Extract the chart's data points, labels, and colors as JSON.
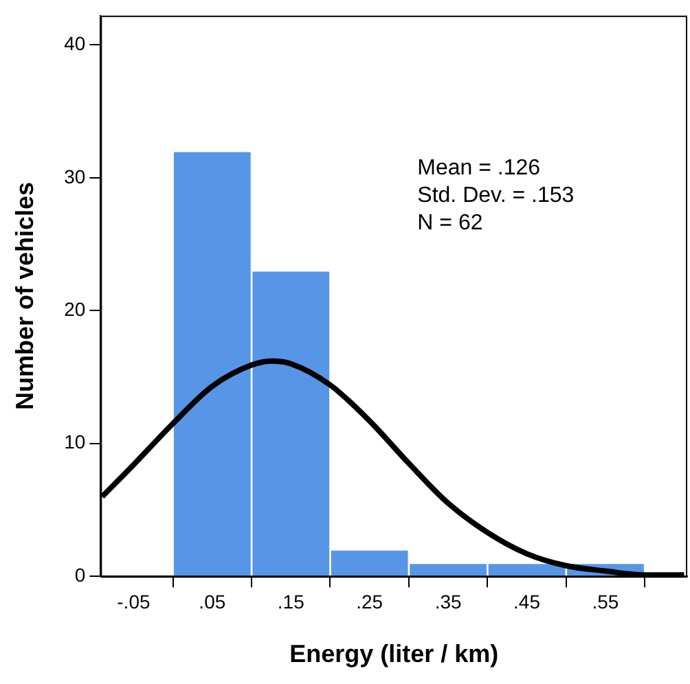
{
  "chart_data": {
    "type": "histogram",
    "xlabel": "Energy (liter / km)",
    "ylabel": "Number of vehicles",
    "series": [
      {
        "color": "#5796e6",
        "bins": [
          0,
          0.1,
          0.2,
          0.3,
          0.4,
          0.5,
          0.6
        ],
        "values": [
          32,
          23,
          2,
          1,
          1,
          1
        ]
      },
      {
        "type": "line",
        "color": "#000000",
        "x": [
          -0.09,
          -0.05,
          0,
          0.05,
          0.1,
          0.126,
          0.15,
          0.2,
          0.25,
          0.3,
          0.35,
          0.4,
          0.45,
          0.5,
          0.55,
          0.6,
          0.65
        ],
        "values": [
          6.0,
          8.4,
          11.5,
          14.3,
          15.9,
          16.2,
          16.0,
          14.4,
          11.7,
          8.5,
          5.5,
          3.3,
          1.7,
          0.8,
          0.4,
          0.1,
          0.1
        ]
      }
    ],
    "xlim": [
      -0.092,
      0.654
    ],
    "ylim": [
      0,
      42.2
    ],
    "xticks": [
      {
        "value": -0.05,
        "label": "-.05"
      },
      {
        "value": 0.05,
        "label": ".05"
      },
      {
        "value": 0.15,
        "label": ".15"
      },
      {
        "value": 0.25,
        "label": ".25"
      },
      {
        "value": 0.35,
        "label": ".35"
      },
      {
        "value": 0.45,
        "label": ".45"
      },
      {
        "value": 0.55,
        "label": ".55"
      }
    ],
    "yticks": [
      0,
      10,
      20,
      30,
      40
    ],
    "grid": false,
    "legend": false,
    "marker": "none",
    "line_style": "solid",
    "annotations": [
      "Mean = .126",
      "Std. Dev. = .153",
      "N = 62"
    ]
  }
}
